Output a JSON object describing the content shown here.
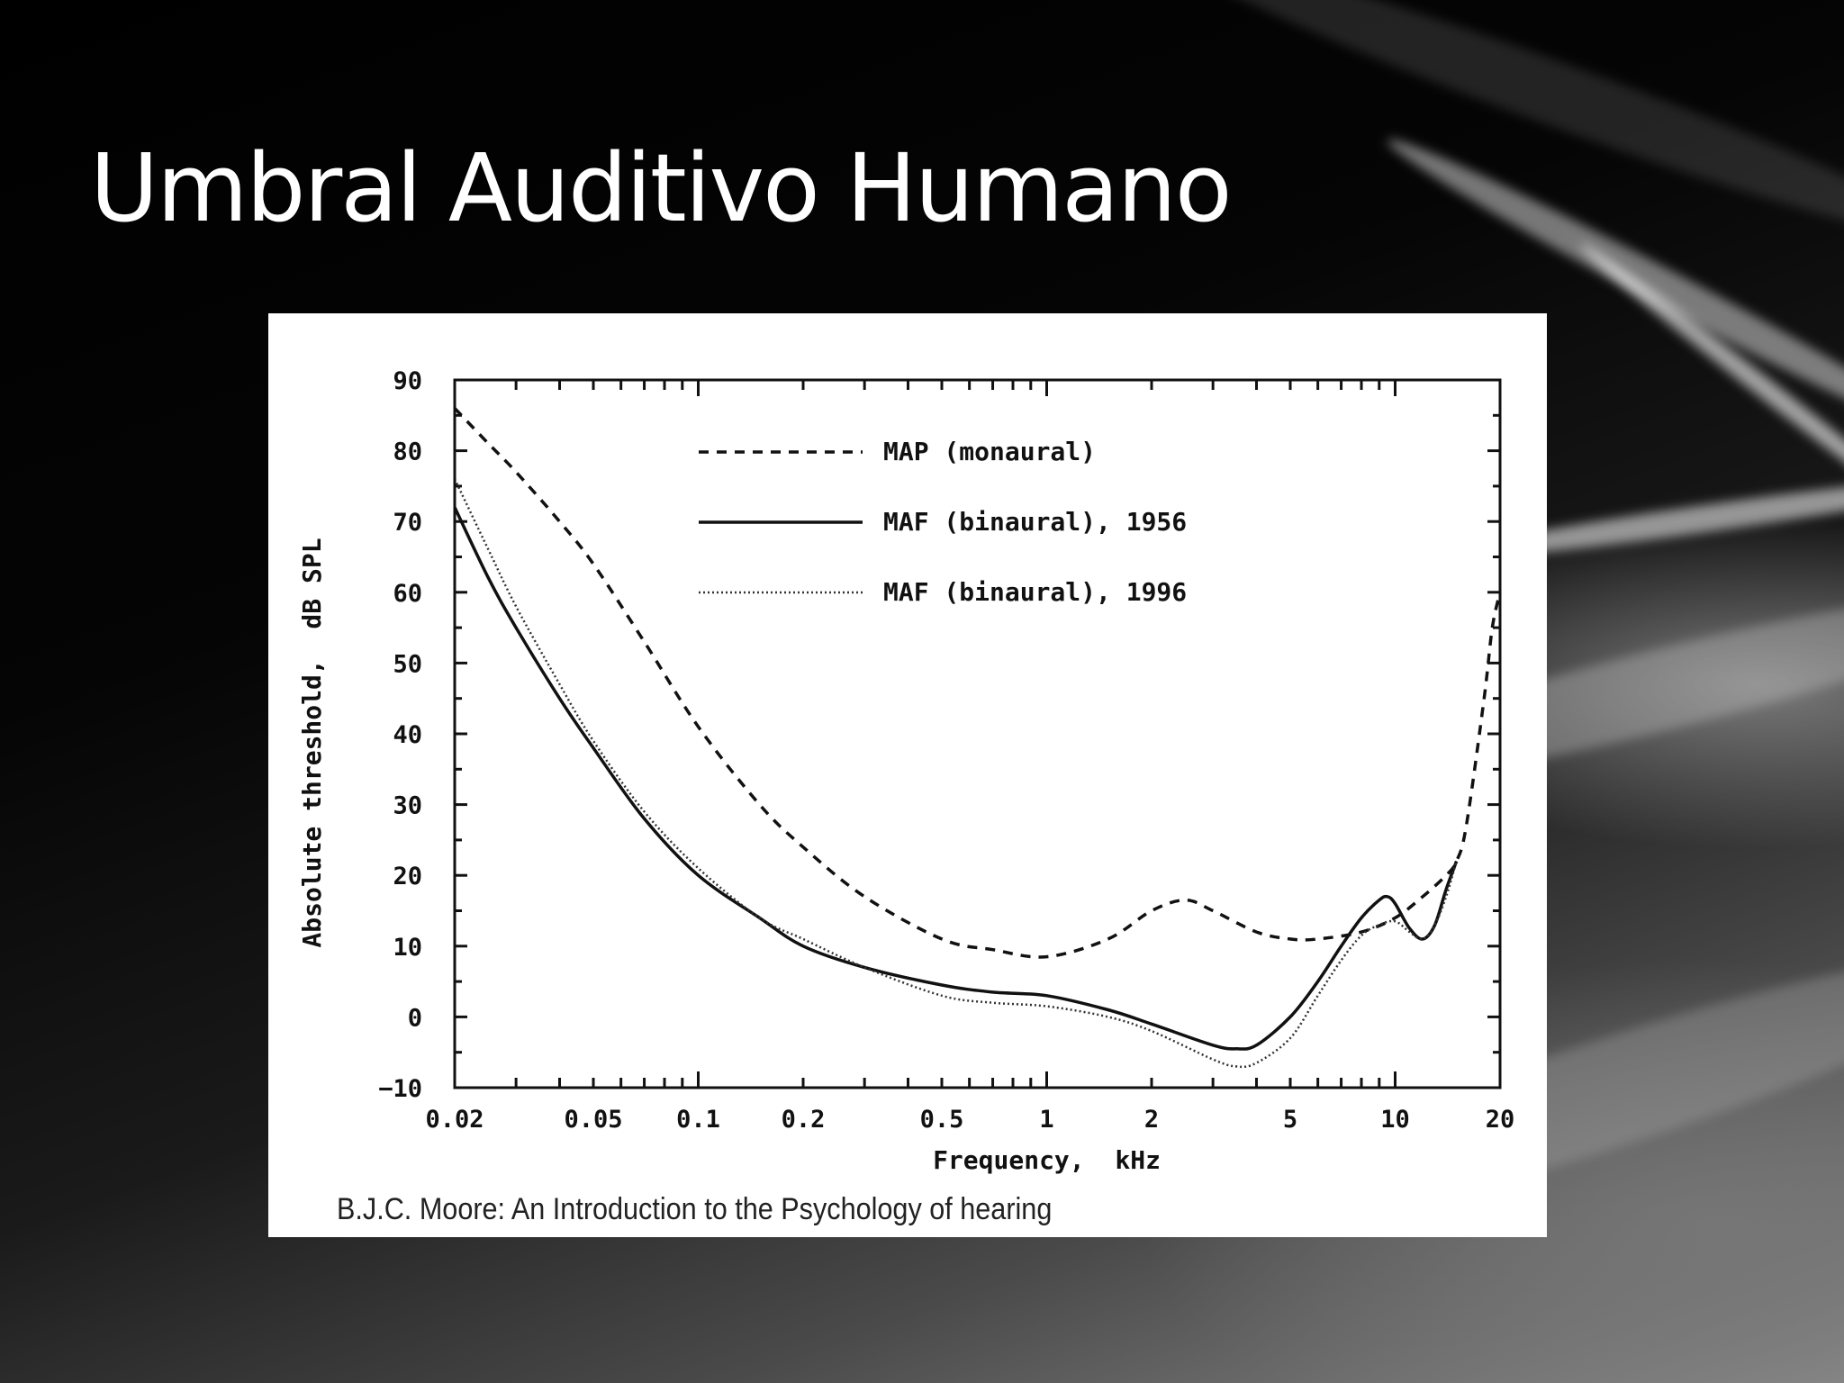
{
  "slide": {
    "title": "Umbral Auditivo Humano",
    "citation": "B.J.C. Moore: An Introduction to the Psychology of hearing"
  },
  "chart_data": {
    "type": "line",
    "xlabel": "Frequency,  kHz",
    "ylabel": "Absolute threshold,  dB SPL",
    "x_scale": "log",
    "xlim": [
      0.02,
      20
    ],
    "ylim": [
      -10,
      90
    ],
    "x_ticks": [
      {
        "value": 0.02,
        "label": "0.02"
      },
      {
        "value": 0.05,
        "label": "0.05"
      },
      {
        "value": 0.1,
        "label": "0.1"
      },
      {
        "value": 0.2,
        "label": "0.2"
      },
      {
        "value": 0.5,
        "label": "0.5"
      },
      {
        "value": 1,
        "label": "1"
      },
      {
        "value": 2,
        "label": "2"
      },
      {
        "value": 5,
        "label": "5"
      },
      {
        "value": 10,
        "label": "10"
      },
      {
        "value": 20,
        "label": "20"
      }
    ],
    "y_ticks": [
      {
        "value": 90,
        "label": "90"
      },
      {
        "value": 80,
        "label": "80"
      },
      {
        "value": 70,
        "label": "70"
      },
      {
        "value": 60,
        "label": "60"
      },
      {
        "value": 50,
        "label": "50"
      },
      {
        "value": 40,
        "label": "40"
      },
      {
        "value": 30,
        "label": "30"
      },
      {
        "value": 20,
        "label": "20"
      },
      {
        "value": 10,
        "label": "10"
      },
      {
        "value": 0,
        "label": "0"
      },
      {
        "value": -10,
        "label": "−10"
      }
    ],
    "legend_position": "top-center",
    "grid": false,
    "series": [
      {
        "name": "MAP  (monaural)",
        "style": "dashed",
        "x": [
          0.02,
          0.025,
          0.03,
          0.04,
          0.05,
          0.07,
          0.1,
          0.15,
          0.2,
          0.3,
          0.5,
          0.7,
          1.0,
          1.5,
          2.0,
          2.5,
          3.0,
          4.0,
          5.0,
          6.0,
          8.0,
          10.0,
          12.0,
          14.0,
          15.0,
          16.0,
          18.0,
          19.0,
          20.0
        ],
        "y": [
          86,
          81,
          77,
          70,
          64,
          53,
          41,
          30,
          24,
          17,
          11,
          9.5,
          8.5,
          11,
          15,
          16.5,
          15,
          12,
          11,
          11,
          12,
          14,
          17,
          20,
          22,
          27,
          45,
          55,
          60
        ]
      },
      {
        "name": "MAF  (binaural),  1956",
        "style": "solid",
        "x": [
          0.02,
          0.025,
          0.03,
          0.04,
          0.05,
          0.07,
          0.1,
          0.15,
          0.2,
          0.3,
          0.5,
          0.7,
          1.0,
          1.5,
          2.0,
          3.0,
          3.5,
          4.0,
          5.0,
          6.0,
          7.0,
          8.0,
          9.0,
          9.5,
          10.0,
          11.0,
          12.0,
          13.0,
          14.0,
          15.0
        ],
        "y": [
          72,
          62,
          55,
          45,
          38,
          28,
          20,
          14,
          10,
          7,
          4.5,
          3.5,
          3,
          1,
          -1,
          -4,
          -4.5,
          -4,
          0,
          5,
          10,
          14,
          16.5,
          17,
          16,
          12.5,
          11,
          13,
          18,
          22
        ]
      },
      {
        "name": "MAF  (binaural),  1996",
        "style": "dotted",
        "x": [
          0.02,
          0.025,
          0.03,
          0.04,
          0.05,
          0.07,
          0.1,
          0.15,
          0.2,
          0.3,
          0.5,
          0.7,
          1.0,
          1.5,
          2.0,
          3.0,
          3.5,
          4.0,
          5.0,
          6.0,
          7.0,
          8.0,
          9.0,
          10.0,
          11.0,
          12.0,
          13.0,
          14.0,
          15.0
        ],
        "y": [
          76,
          66,
          58,
          47,
          39,
          29,
          21,
          14,
          11,
          7,
          3,
          2,
          1.5,
          0,
          -2,
          -6,
          -7,
          -6.5,
          -3,
          3,
          8,
          11.5,
          13,
          13.5,
          12,
          11,
          13,
          17,
          22
        ]
      }
    ]
  }
}
